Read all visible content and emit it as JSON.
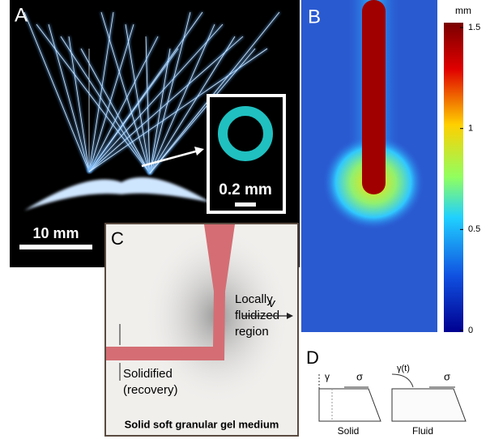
{
  "panels": {
    "a": {
      "label": "A",
      "scale_bar": "10 mm",
      "inset_scale_bar": "0.2 mm"
    },
    "b": {
      "label": "B",
      "colorbar": {
        "unit": "mm",
        "ticks": [
          0,
          0.5,
          1,
          1.5
        ]
      }
    },
    "c": {
      "label": "C",
      "region_label": [
        "Locally",
        "fluidized",
        "region"
      ],
      "velocity": "v",
      "recovery_label": [
        "Solidified",
        "(recovery)"
      ],
      "caption": "Solid soft granular gel medium"
    },
    "d": {
      "label": "D",
      "solid_strain": "γ",
      "solid_stress": "σ",
      "fluid_strain": "γ(t)",
      "fluid_stress": "σ",
      "solid_caption": "Solid",
      "fluid_caption": "Fluid"
    }
  }
}
